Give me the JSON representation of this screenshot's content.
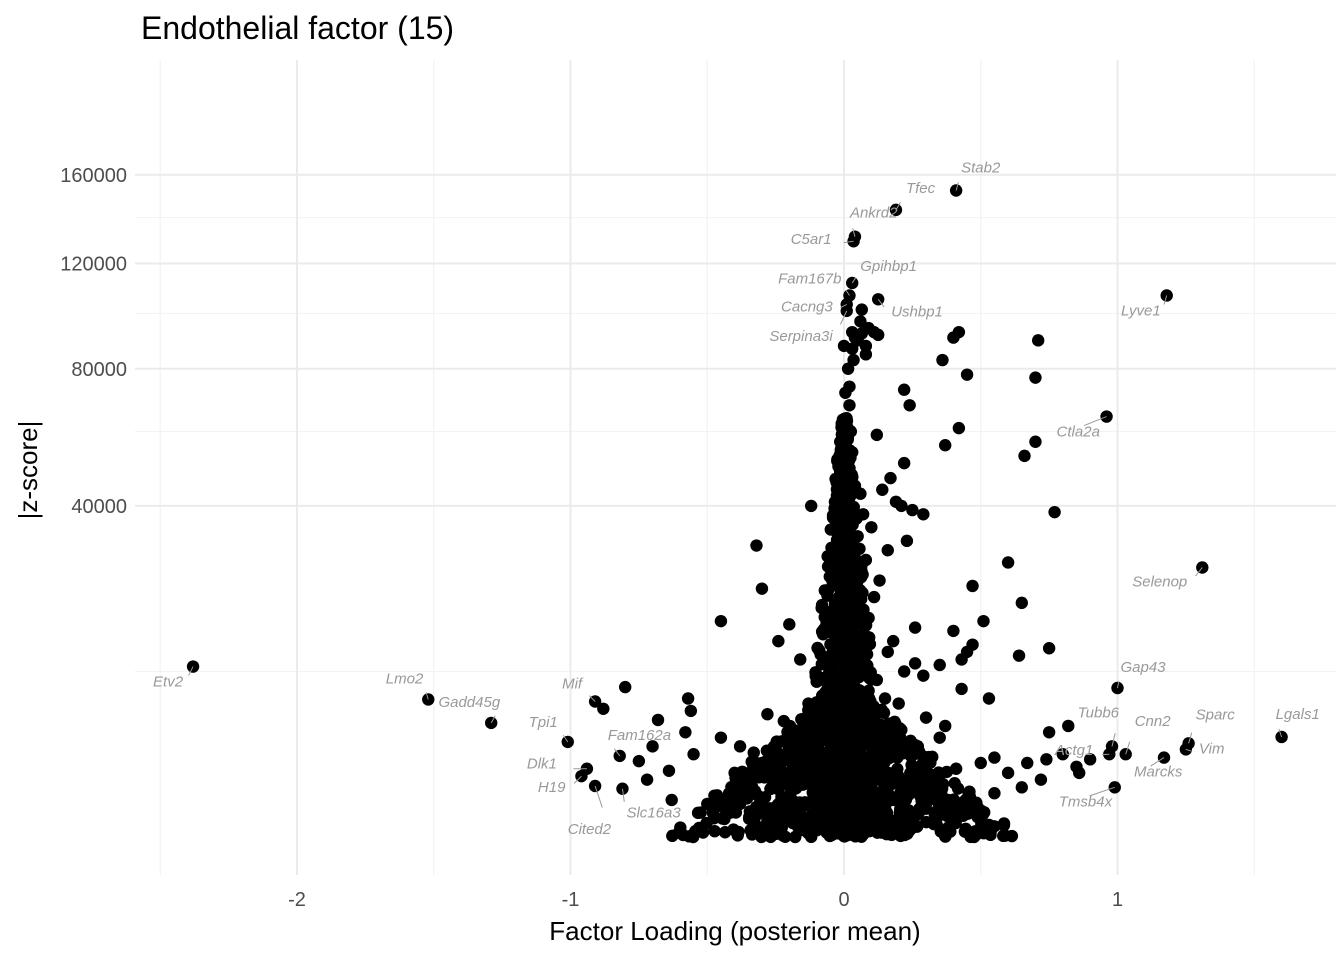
{
  "chart_data": {
    "type": "scatter",
    "title": "Endothelial factor (15)",
    "xlabel": "Factor Loading (posterior mean)",
    "ylabel": "|z-score|",
    "x_ticks": [
      {
        "value": -2,
        "label": "-2"
      },
      {
        "value": -1,
        "label": "-1"
      },
      {
        "value": 0,
        "label": "0"
      },
      {
        "value": 1,
        "label": "1"
      }
    ],
    "y_ticks": [
      {
        "value": 40000,
        "label": "40000"
      },
      {
        "value": 80000,
        "label": "80000"
      },
      {
        "value": 120000,
        "label": "120000"
      },
      {
        "value": 160000,
        "label": "160000"
      }
    ],
    "y_scale": "sqrt",
    "xlim": [
      -2.5,
      1.65
    ],
    "ylim": [
      0,
      166000
    ],
    "grid": true,
    "point_color": "#000000",
    "label_color": "#999999",
    "labeled_points": [
      {
        "gene": "Stab2",
        "x": 0.41,
        "y": 152500
      },
      {
        "gene": "Tfec",
        "x": 0.19,
        "y": 143500
      },
      {
        "gene": "Ankrd2",
        "x": 0.04,
        "y": 131500
      },
      {
        "gene": "C5ar1",
        "x": 0.035,
        "y": 129500
      },
      {
        "gene": "Gpihbp1",
        "x": 0.03,
        "y": 112000
      },
      {
        "gene": "Fam167b",
        "x": 0.02,
        "y": 107000
      },
      {
        "gene": "Cacng3",
        "x": 0.01,
        "y": 103500
      },
      {
        "gene": "Ushbp1",
        "x": 0.125,
        "y": 105500
      },
      {
        "gene": "Serpina3i",
        "x": 0.01,
        "y": 101000
      },
      {
        "gene": "Lyve1",
        "x": 1.18,
        "y": 107000
      },
      {
        "gene": "Ctla2a",
        "x": 0.96,
        "y": 64500
      },
      {
        "gene": "Selenop",
        "x": 1.31,
        "y": 26500
      },
      {
        "gene": "Gap43",
        "x": 1.0,
        "y": 8100
      },
      {
        "gene": "Etv2",
        "x": -2.38,
        "y": 10600
      },
      {
        "gene": "Lmo2",
        "x": -1.52,
        "y": 6900
      },
      {
        "gene": "Gadd45g",
        "x": -1.29,
        "y": 4750
      },
      {
        "gene": "Mif",
        "x": -0.91,
        "y": 6700
      },
      {
        "gene": "Tpi1",
        "x": -1.01,
        "y": 3300
      },
      {
        "gene": "Fam162a",
        "x": -0.82,
        "y": 2400
      },
      {
        "gene": "Dlk1",
        "x": -0.94,
        "y": 1700
      },
      {
        "gene": "H19",
        "x": -0.96,
        "y": 1350
      },
      {
        "gene": "Cited2",
        "x": -0.91,
        "y": 950
      },
      {
        "gene": "Slc16a3",
        "x": -0.81,
        "y": 850
      },
      {
        "gene": "Tubb6",
        "x": 0.98,
        "y": 3000
      },
      {
        "gene": "Actg1",
        "x": 0.97,
        "y": 2500
      },
      {
        "gene": "Cnn2",
        "x": 1.03,
        "y": 2500
      },
      {
        "gene": "Sparc",
        "x": 1.26,
        "y": 3200
      },
      {
        "gene": "Vim",
        "x": 1.25,
        "y": 2800
      },
      {
        "gene": "Marcks",
        "x": 1.17,
        "y": 2300
      },
      {
        "gene": "Lgals1",
        "x": 1.6,
        "y": 3650
      },
      {
        "gene": "Tmsb4x",
        "x": 0.99,
        "y": 900
      }
    ],
    "points": [
      [
        0.0,
        88000
      ],
      [
        0.015,
        80000
      ],
      [
        0.005,
        72000
      ],
      [
        0.02,
        68000
      ],
      [
        0.01,
        63000
      ],
      [
        0.025,
        60000
      ],
      [
        0.0,
        56000
      ],
      [
        0.03,
        54000
      ],
      [
        0.015,
        50000
      ],
      [
        -0.005,
        47000
      ],
      [
        0.04,
        45000
      ],
      [
        0.02,
        42000
      ],
      [
        0.06,
        43000
      ],
      [
        0.0,
        39000
      ],
      [
        0.035,
        37000
      ],
      [
        -0.01,
        35000
      ],
      [
        0.05,
        33000
      ],
      [
        0.015,
        31000
      ],
      [
        0.005,
        29000
      ],
      [
        -0.015,
        27000
      ],
      [
        0.045,
        25000
      ],
      [
        0.025,
        23000
      ],
      [
        0.0,
        21000
      ],
      [
        -0.02,
        19000
      ],
      [
        0.06,
        18000
      ],
      [
        0.03,
        16000
      ],
      [
        0.01,
        14500
      ],
      [
        -0.04,
        13000
      ],
      [
        0.07,
        12000
      ],
      [
        0.02,
        10500
      ],
      [
        0.0,
        9500
      ],
      [
        -0.06,
        8500
      ],
      [
        0.09,
        7800
      ],
      [
        0.04,
        7000
      ],
      [
        -0.02,
        6200
      ],
      [
        0.12,
        5600
      ],
      [
        0.0,
        5000
      ],
      [
        -0.09,
        4500
      ],
      [
        0.05,
        4000
      ],
      [
        0.15,
        3600
      ],
      [
        -0.14,
        3200
      ],
      [
        0.02,
        2800
      ],
      [
        0.2,
        2500
      ],
      [
        -0.2,
        2200
      ],
      [
        0.08,
        1900
      ],
      [
        -0.05,
        1600
      ],
      [
        0.25,
        1300
      ],
      [
        -0.25,
        1100
      ],
      [
        0.1,
        900
      ],
      [
        -0.1,
        700
      ],
      [
        0.18,
        500
      ],
      [
        -0.18,
        350
      ],
      [
        0.0,
        200
      ],
      [
        0.05,
        100
      ],
      [
        -0.03,
        50
      ],
      [
        0.065,
        101500
      ],
      [
        0.06,
        97000
      ],
      [
        0.065,
        92500
      ],
      [
        0.09,
        94500
      ],
      [
        0.11,
        93000
      ],
      [
        0.125,
        92000
      ],
      [
        0.04,
        91000
      ],
      [
        0.03,
        87000
      ],
      [
        0.03,
        93000
      ],
      [
        0.08,
        88000
      ],
      [
        0.08,
        85000
      ],
      [
        0.05,
        90000
      ],
      [
        0.36,
        83000
      ],
      [
        0.4,
        91000
      ],
      [
        0.42,
        93000
      ],
      [
        0.45,
        78000
      ],
      [
        0.71,
        90000
      ],
      [
        0.7,
        77000
      ],
      [
        0.22,
        73000
      ],
      [
        0.24,
        68000
      ],
      [
        0.42,
        61000
      ],
      [
        0.12,
        59000
      ],
      [
        0.37,
        56000
      ],
      [
        0.66,
        53000
      ],
      [
        0.7,
        57000
      ],
      [
        0.22,
        51000
      ],
      [
        0.17,
        47000
      ],
      [
        0.14,
        44000
      ],
      [
        0.19,
        41000
      ],
      [
        0.21,
        40000
      ],
      [
        0.25,
        39000
      ],
      [
        0.29,
        38000
      ],
      [
        -0.12,
        40000
      ],
      [
        0.77,
        38500
      ],
      [
        -0.32,
        31000
      ],
      [
        0.23,
        32000
      ],
      [
        0.6,
        27500
      ],
      [
        0.47,
        23000
      ],
      [
        0.65,
        20000
      ],
      [
        -0.3,
        22500
      ],
      [
        0.75,
        13000
      ],
      [
        0.64,
        12000
      ],
      [
        -0.45,
        17000
      ],
      [
        0.51,
        17000
      ],
      [
        0.4,
        15500
      ],
      [
        0.43,
        11500
      ],
      [
        -0.2,
        16500
      ],
      [
        -0.24,
        14000
      ],
      [
        0.47,
        13500
      ],
      [
        0.45,
        12500
      ],
      [
        0.26,
        11000
      ],
      [
        -0.16,
        11500
      ],
      [
        0.35,
        10800
      ],
      [
        0.22,
        10000
      ],
      [
        0.29,
        9500
      ],
      [
        0.43,
        8000
      ],
      [
        0.53,
        7000
      ],
      [
        -0.8,
        8200
      ],
      [
        -0.88,
        6000
      ],
      [
        -0.57,
        7000
      ],
      [
        -0.56,
        5800
      ],
      [
        -0.68,
        5000
      ],
      [
        -0.58,
        4000
      ],
      [
        -0.7,
        3000
      ],
      [
        -0.75,
        2100
      ],
      [
        -0.55,
        2500
      ],
      [
        -0.45,
        3600
      ],
      [
        -0.38,
        3000
      ],
      [
        -0.33,
        2600
      ],
      [
        -0.3,
        2000
      ],
      [
        0.82,
        4500
      ],
      [
        0.75,
        4000
      ],
      [
        0.8,
        2500
      ],
      [
        0.74,
        2200
      ],
      [
        0.67,
        2000
      ],
      [
        0.9,
        2200
      ],
      [
        0.85,
        1800
      ],
      [
        0.86,
        1500
      ],
      [
        0.72,
        1200
      ],
      [
        0.65,
        900
      ],
      [
        0.55,
        700
      ],
      [
        0.46,
        600
      ],
      [
        0.38,
        500
      ],
      [
        0.3,
        400
      ],
      [
        -0.63,
        500
      ],
      [
        -0.5,
        400
      ],
      [
        -0.42,
        700
      ],
      [
        -0.27,
        300
      ],
      [
        -0.21,
        200
      ],
      [
        -0.72,
        1200
      ],
      [
        -0.64,
        1600
      ],
      [
        -0.4,
        1500
      ],
      [
        -0.35,
        1100
      ],
      [
        -0.15,
        1000
      ],
      [
        0.13,
        1200
      ],
      [
        0.24,
        1000
      ],
      [
        0.33,
        1400
      ],
      [
        0.41,
        1700
      ],
      [
        0.5,
        2000
      ],
      [
        0.55,
        2300
      ],
      [
        0.6,
        1500
      ],
      [
        0.27,
        3000
      ],
      [
        0.35,
        3600
      ],
      [
        0.37,
        4500
      ],
      [
        -0.28,
        5500
      ],
      [
        -0.22,
        4900
      ],
      [
        -0.13,
        6500
      ],
      [
        0.15,
        7000
      ],
      [
        0.2,
        6500
      ],
      [
        0.3,
        5200
      ],
      [
        -0.1,
        8800
      ],
      [
        0.12,
        9000
      ],
      [
        0.16,
        12500
      ],
      [
        0.18,
        14000
      ],
      [
        0.26,
        16000
      ],
      [
        -0.05,
        18000
      ],
      [
        0.09,
        17500
      ],
      [
        0.11,
        21000
      ],
      [
        0.13,
        24000
      ],
      [
        0.08,
        28000
      ],
      [
        0.16,
        30000
      ],
      [
        0.1,
        35000
      ],
      [
        0.07,
        38000
      ],
      [
        -0.03,
        41000
      ],
      [
        0.02,
        74000
      ],
      [
        0.035,
        83000
      ]
    ]
  }
}
